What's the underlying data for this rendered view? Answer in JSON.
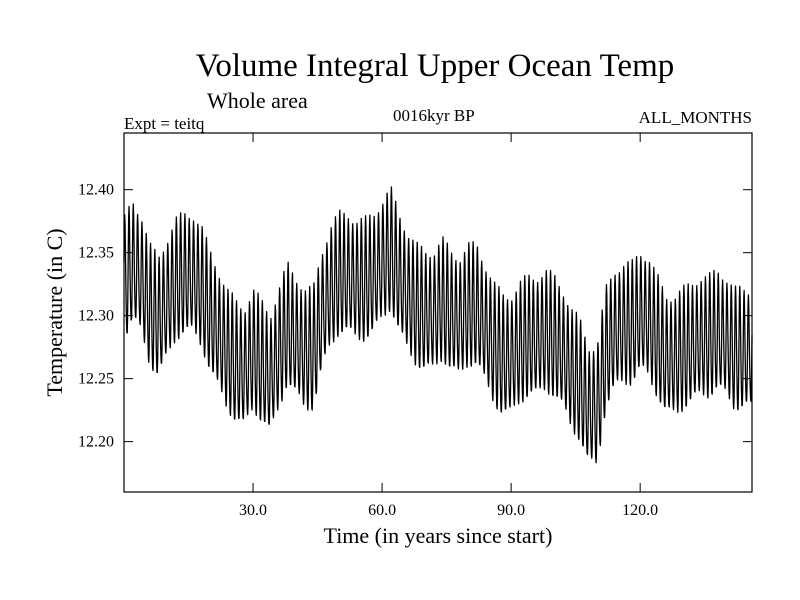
{
  "chart_data": {
    "type": "line",
    "title": "Volume Integral Upper Ocean Temp",
    "subtitle": "Whole area",
    "experiment_label": "Expt = teitq",
    "period_label": "0016kyr BP",
    "months_label": "ALL_MONTHS",
    "xlabel": "Time (in years since start)",
    "ylabel": "Temperature (in C)",
    "xlim": [
      0,
      146
    ],
    "ylim": [
      12.16,
      12.445
    ],
    "xticks": [
      30,
      60,
      90,
      120
    ],
    "xtick_labels": [
      "30.0",
      "60.0",
      "90.0",
      "120.0"
    ],
    "yticks": [
      12.2,
      12.25,
      12.3,
      12.35,
      12.4
    ],
    "ytick_labels": [
      "12.20",
      "12.25",
      "12.30",
      "12.35",
      "12.40"
    ],
    "grid": false,
    "series": [
      {
        "name": "Volume integral upper ocean temperature",
        "seasonal_amplitude": 0.045,
        "annual_mean_x": [
          0,
          2,
          4,
          6,
          8,
          10,
          12,
          14,
          16,
          18,
          20,
          22,
          24,
          26,
          28,
          30,
          32,
          34,
          36,
          38,
          40,
          42,
          44,
          46,
          48,
          50,
          52,
          54,
          56,
          58,
          60,
          62,
          64,
          66,
          68,
          70,
          72,
          74,
          76,
          78,
          80,
          82,
          84,
          86,
          88,
          90,
          92,
          94,
          96,
          98,
          100,
          102,
          104,
          106,
          108,
          110,
          112,
          114,
          116,
          118,
          120,
          122,
          124,
          126,
          128,
          130,
          132,
          134,
          136,
          138,
          140,
          142,
          144,
          146
        ],
        "annual_mean_y": [
          12.325,
          12.34,
          12.33,
          12.305,
          12.295,
          12.31,
          12.325,
          12.33,
          12.33,
          12.32,
          12.3,
          12.285,
          12.27,
          12.26,
          12.255,
          12.27,
          12.26,
          12.25,
          12.27,
          12.29,
          12.28,
          12.27,
          12.27,
          12.3,
          12.32,
          12.33,
          12.33,
          12.325,
          12.325,
          12.33,
          12.34,
          12.35,
          12.33,
          12.315,
          12.305,
          12.3,
          12.3,
          12.31,
          12.3,
          12.295,
          12.305,
          12.305,
          12.29,
          12.275,
          12.265,
          12.265,
          12.275,
          12.28,
          12.28,
          12.285,
          12.28,
          12.27,
          12.255,
          12.245,
          12.225,
          12.225,
          12.27,
          12.285,
          12.29,
          12.29,
          12.3,
          12.295,
          12.28,
          12.265,
          12.265,
          12.27,
          12.275,
          12.28,
          12.28,
          12.285,
          12.28,
          12.27,
          12.27,
          12.27
        ]
      }
    ]
  }
}
